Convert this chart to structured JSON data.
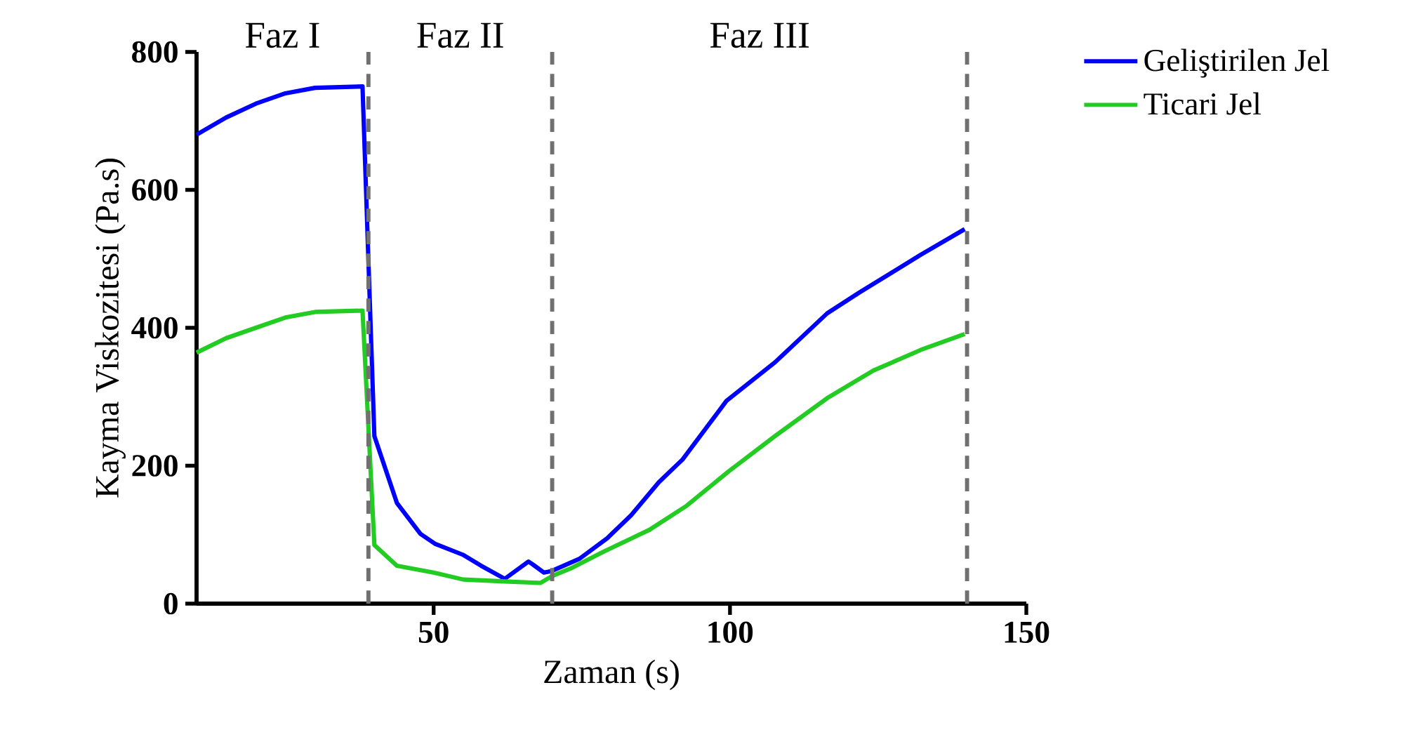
{
  "chart_data": {
    "type": "line",
    "xlabel": "Zaman (s)",
    "ylabel": "Kayma Viskozitesi (Pa.s)",
    "xlim": [
      10,
      150
    ],
    "ylim": [
      0,
      800
    ],
    "xticks": [
      50,
      100,
      150
    ],
    "yticks": [
      0,
      200,
      400,
      600,
      800
    ],
    "legend": "top right",
    "grid": false,
    "marker": "none",
    "line_style": "solid",
    "annotations": [
      "Faz I",
      "Faz II",
      "Faz III"
    ],
    "ref_lines": [
      {
        "axis": "x",
        "value": 39,
        "color": "#707070",
        "line_style": "dashed"
      },
      {
        "axis": "x",
        "value": 70,
        "color": "#707070",
        "line_style": "dashed"
      },
      {
        "axis": "x",
        "value": 140,
        "color": "#707070",
        "line_style": "dashed"
      }
    ],
    "series": [
      {
        "name": "Geliştirilen Jel",
        "color": "#0000ff",
        "x": [
          10,
          15,
          20,
          25,
          30,
          38,
          40,
          43.8,
          47.8,
          50.2,
          54.9,
          58,
          62,
          66,
          66.7,
          68.6,
          69.8,
          74.6,
          79.3,
          83.3,
          88,
          92,
          99.4,
          107.6,
          116.4,
          121.8,
          132.2,
          139.6
        ],
        "values": [
          680,
          705,
          725,
          740,
          748,
          750,
          243,
          146,
          101,
          87,
          71,
          55,
          36,
          61,
          57,
          45,
          47,
          65,
          95,
          128,
          176,
          209,
          294,
          350,
          421,
          451,
          506,
          543
        ]
      },
      {
        "name": "Ticari Jel",
        "color": "#22cc22",
        "x": [
          10,
          15,
          20,
          25,
          30,
          38,
          40,
          43.8,
          50,
          55,
          62.7,
          68,
          70,
          73.1,
          78.6,
          86.4,
          92.7,
          99.8,
          107.6,
          116.4,
          124.2,
          132.2,
          139.6
        ],
        "values": [
          364,
          385,
          400,
          415,
          423,
          425,
          85,
          55,
          45,
          35,
          32,
          30,
          40,
          51,
          75,
          107,
          142,
          192,
          243,
          298,
          338,
          368,
          391
        ]
      }
    ]
  }
}
